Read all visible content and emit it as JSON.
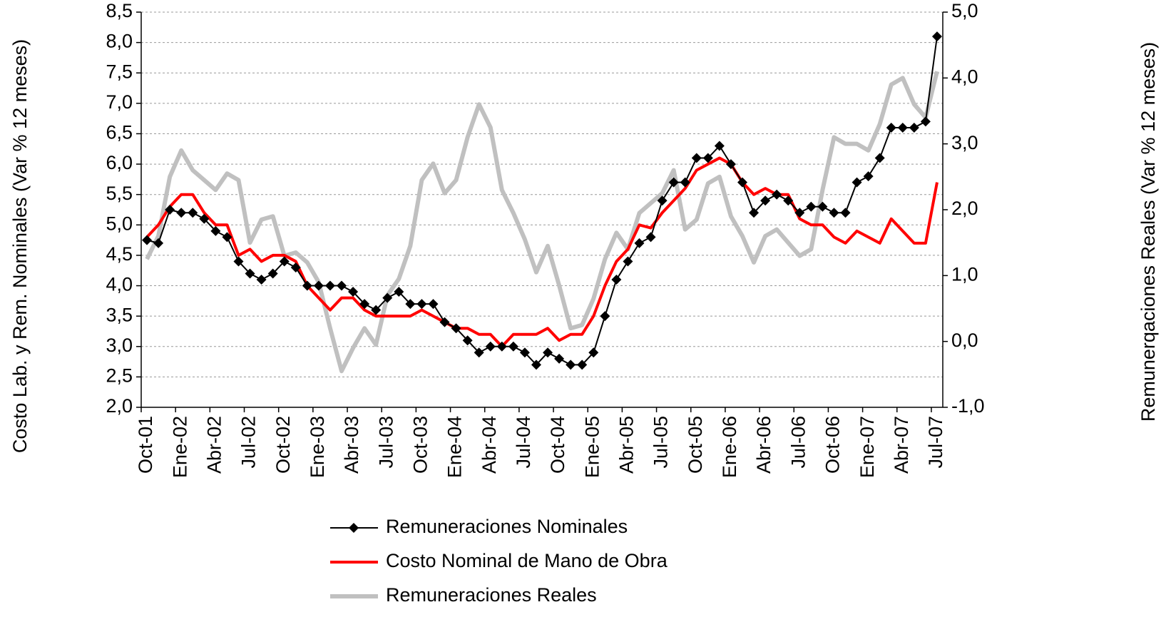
{
  "chart_data": {
    "type": "line",
    "y_label": "Costo Lab. y Rem. Nominales (Var % 12 meses)",
    "y2_label": "Remunerqaciones Reales (Var % 12 meses)",
    "categories": [
      "Oct-01",
      null,
      null,
      "Ene-02",
      null,
      null,
      "Abr-02",
      null,
      null,
      "Jul-02",
      null,
      null,
      "Oct-02",
      null,
      null,
      "Ene-03",
      null,
      null,
      "Abr-03",
      null,
      null,
      "Jul-03",
      null,
      null,
      "Oct-03",
      null,
      null,
      "Ene-04",
      null,
      null,
      "Abr-04",
      null,
      null,
      "Jul-04",
      null,
      null,
      "Oct-04",
      null,
      null,
      "Ene-05",
      null,
      null,
      "Abr-05",
      null,
      null,
      "Jul-05",
      null,
      null,
      "Oct-05",
      null,
      null,
      "Ene-06",
      null,
      null,
      "Abr-06",
      null,
      null,
      "Jul-06",
      null,
      null,
      "Oct-06",
      null,
      null,
      "Ene-07",
      null,
      null,
      "Abr-07",
      null,
      null,
      "Jul-07"
    ],
    "ylim": [
      2.0,
      8.5
    ],
    "yticks": [
      {
        "value": 2.0,
        "label": "2,0"
      },
      {
        "value": 2.5,
        "label": "2,5"
      },
      {
        "value": 3.0,
        "label": "3,0"
      },
      {
        "value": 3.5,
        "label": "3,5"
      },
      {
        "value": 4.0,
        "label": "4,0"
      },
      {
        "value": 4.5,
        "label": "4,5"
      },
      {
        "value": 5.0,
        "label": "5,0"
      },
      {
        "value": 5.5,
        "label": "5,5"
      },
      {
        "value": 6.0,
        "label": "6,0"
      },
      {
        "value": 6.5,
        "label": "6,5"
      },
      {
        "value": 7.0,
        "label": "7,0"
      },
      {
        "value": 7.5,
        "label": "7,5"
      },
      {
        "value": 8.0,
        "label": "8,0"
      },
      {
        "value": 8.5,
        "label": "8,5"
      }
    ],
    "y2lim": [
      -1.0,
      5.0
    ],
    "y2ticks": [
      {
        "value": -1.0,
        "label": "-1,0"
      },
      {
        "value": 0.0,
        "label": "0,0"
      },
      {
        "value": 1.0,
        "label": "1,0"
      },
      {
        "value": 2.0,
        "label": "2,0"
      },
      {
        "value": 3.0,
        "label": "3,0"
      },
      {
        "value": 4.0,
        "label": "4,0"
      },
      {
        "value": 5.0,
        "label": "5,0"
      }
    ],
    "grid": true,
    "legend": "bottom",
    "series": [
      {
        "name": "Remuneraciones Nominales",
        "color": "#000000",
        "marker": "diamond",
        "values": [
          4.75,
          4.7,
          5.25,
          5.2,
          5.2,
          5.1,
          4.9,
          4.8,
          4.4,
          4.2,
          4.1,
          4.2,
          4.4,
          4.3,
          4.0,
          4.0,
          4.0,
          4.0,
          3.9,
          3.7,
          3.6,
          3.8,
          3.9,
          3.7,
          3.7,
          3.7,
          3.4,
          3.3,
          3.1,
          2.9,
          3.0,
          3.0,
          3.0,
          2.9,
          2.7,
          2.9,
          2.8,
          2.7,
          2.7,
          2.9,
          3.5,
          4.1,
          4.4,
          4.7,
          4.8,
          5.4,
          5.7,
          5.7,
          6.1,
          6.1,
          6.3,
          6.0,
          5.7,
          5.2,
          5.4,
          5.5,
          5.4,
          5.2,
          5.3,
          5.3,
          5.2,
          5.2,
          5.7,
          5.8,
          6.1,
          6.6,
          6.6,
          6.6,
          6.7,
          8.1
        ]
      },
      {
        "name": "Costo Nominal de Mano de Obra",
        "color": "#ff0000",
        "values": [
          4.8,
          5.0,
          5.3,
          5.5,
          5.5,
          5.2,
          5.0,
          5.0,
          4.5,
          4.6,
          4.4,
          4.5,
          4.5,
          4.4,
          4.0,
          3.8,
          3.6,
          3.8,
          3.8,
          3.6,
          3.5,
          3.5,
          3.5,
          3.5,
          3.6,
          3.5,
          3.4,
          3.3,
          3.3,
          3.2,
          3.2,
          3.0,
          3.2,
          3.2,
          3.2,
          3.3,
          3.1,
          3.2,
          3.2,
          3.5,
          4.0,
          4.4,
          4.6,
          5.0,
          4.95,
          5.2,
          5.4,
          5.6,
          5.9,
          6.0,
          6.1,
          6.0,
          5.7,
          5.5,
          5.6,
          5.5,
          5.5,
          5.1,
          5.0,
          5.0,
          4.8,
          4.7,
          4.9,
          4.8,
          4.7,
          5.1,
          4.9,
          4.7,
          4.7,
          5.7
        ]
      },
      {
        "name": "Remuneraciones Reales",
        "color": "#c0c0c0",
        "axis": "y2",
        "values": [
          1.25,
          1.6,
          2.5,
          2.9,
          2.6,
          2.45,
          2.3,
          2.55,
          2.45,
          1.5,
          1.85,
          1.9,
          1.3,
          1.35,
          1.2,
          0.9,
          0.2,
          -0.45,
          -0.1,
          0.2,
          -0.05,
          0.7,
          0.95,
          1.45,
          2.45,
          2.7,
          2.25,
          2.45,
          3.1,
          3.6,
          3.25,
          2.3,
          1.95,
          1.55,
          1.05,
          1.45,
          0.85,
          0.2,
          0.25,
          0.65,
          1.25,
          1.65,
          1.4,
          1.95,
          2.1,
          2.25,
          2.6,
          1.7,
          1.85,
          2.4,
          2.5,
          1.9,
          1.6,
          1.2,
          1.6,
          1.7,
          1.5,
          1.3,
          1.4,
          2.3,
          3.1,
          3.0,
          3.0,
          2.9,
          3.3,
          3.9,
          4.0,
          3.6,
          3.4,
          4.1
        ]
      }
    ]
  }
}
